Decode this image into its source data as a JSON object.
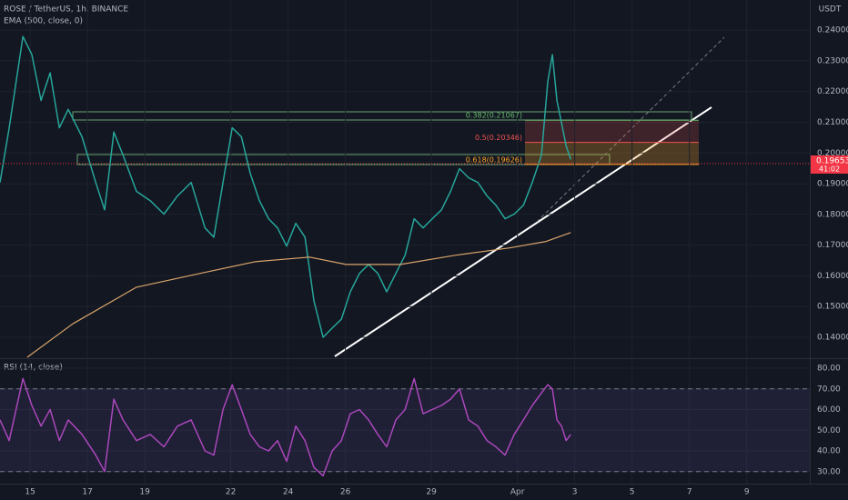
{
  "header": {
    "symbol": "ROSE / TetherUS, 1h, BINANCE",
    "indicator": "EMA (500, close, 0)",
    "currency": "USDT"
  },
  "chart_data": [
    {
      "type": "line",
      "x": [
        13.95,
        14.27,
        14.75,
        15.06,
        15.38,
        15.7,
        16.02,
        16.33,
        16.81,
        17.29,
        17.6,
        17.92,
        18.24,
        18.71,
        19.19,
        19.67,
        20.14,
        20.62,
        21.1,
        21.41,
        21.73,
        22.05,
        22.37,
        22.68,
        23.0,
        23.32,
        23.63,
        23.95,
        24.27,
        24.59,
        24.9,
        25.22,
        25.54,
        25.86,
        26.17,
        26.49,
        26.81,
        27.13,
        27.44,
        27.76,
        28.08,
        28.4,
        28.71,
        29.03,
        29.35,
        29.67,
        29.98,
        30.3,
        30.62,
        30.94,
        31.25,
        31.57,
        31.89,
        32.21,
        32.52,
        32.84,
        33.06,
        33.22,
        33.38,
        33.54,
        33.7,
        33.86
      ],
      "series": [
        {
          "color": "#26a69a",
          "values": [
            0.1904,
            0.2082,
            0.2379,
            0.232,
            0.2171,
            0.2261,
            0.2082,
            0.2142,
            0.2053,
            0.1904,
            0.1815,
            0.2068,
            0.1993,
            0.1875,
            0.1845,
            0.1801,
            0.186,
            0.1904,
            0.1756,
            0.1726,
            0.1904,
            0.2082,
            0.2053,
            0.1934,
            0.1845,
            0.1786,
            0.1756,
            0.1697,
            0.1771,
            0.1726,
            0.1519,
            0.14,
            0.143,
            0.1459,
            0.1548,
            0.1608,
            0.1637,
            0.1608,
            0.1548,
            0.1608,
            0.1667,
            0.1786,
            0.1756,
            0.1786,
            0.1815,
            0.1875,
            0.1949,
            0.1919,
            0.1904,
            0.186,
            0.183,
            0.1786,
            0.1801,
            0.183,
            0.1904,
            0.1993,
            0.2231,
            0.232,
            0.2171,
            0.2097,
            0.2023,
            0.1979
          ]
        },
        {
          "color": "#d8a46a",
          "x": [
            14.9,
            16.49,
            18.71,
            20.94,
            22.84,
            24.75,
            26.02,
            27.92,
            29.83,
            31.73,
            33.0,
            33.86
          ],
          "values": [
            0.1335,
            0.1444,
            0.1563,
            0.1608,
            0.1646,
            0.1661,
            0.1637,
            0.1637,
            0.1667,
            0.1691,
            0.1712,
            0.1741
          ]
        }
      ],
      "xlim": [
        13.95,
        42.2
      ],
      "ylim": [
        0.1332,
        0.2498
      ],
      "yticks": [
        {
          "value": 0.14,
          "label": "0.14000"
        },
        {
          "value": 0.15,
          "label": "0.15000"
        },
        {
          "value": 0.16,
          "label": "0.16000"
        },
        {
          "value": 0.17,
          "label": "0.17000"
        },
        {
          "value": 0.18,
          "label": "0.18000"
        },
        {
          "value": 0.19,
          "label": "0.19000"
        },
        {
          "value": 0.2,
          "label": "0.20000"
        },
        {
          "value": 0.21,
          "label": "0.21000"
        },
        {
          "value": 0.22,
          "label": "0.22000"
        },
        {
          "value": 0.23,
          "label": "0.23000"
        },
        {
          "value": 0.24,
          "label": "0.24000"
        }
      ],
      "fib": [
        {
          "value": 0.21067,
          "label": "0.382(0.21067)",
          "color": "#66bb6a"
        },
        {
          "value": 0.20346,
          "label": "0.5(0.20346)",
          "color": "#ef5350"
        },
        {
          "value": 0.19626,
          "label": "0.618(0.19626)",
          "color": "#ffa726"
        }
      ],
      "last_price": {
        "value": 0.19653,
        "label": "0.19653",
        "countdown": "41:02",
        "color": "#f23645"
      },
      "grid": true
    },
    {
      "type": "line",
      "title": "RSI (14, close)",
      "x": [
        13.95,
        14.27,
        14.75,
        15.06,
        15.38,
        15.7,
        16.02,
        16.33,
        16.81,
        17.29,
        17.6,
        17.92,
        18.24,
        18.71,
        19.19,
        19.67,
        20.14,
        20.62,
        21.1,
        21.41,
        21.73,
        22.05,
        22.37,
        22.68,
        23.0,
        23.32,
        23.63,
        23.95,
        24.27,
        24.59,
        24.9,
        25.22,
        25.54,
        25.86,
        26.17,
        26.49,
        26.81,
        27.13,
        27.44,
        27.76,
        28.08,
        28.4,
        28.71,
        29.03,
        29.35,
        29.67,
        29.98,
        30.3,
        30.62,
        30.94,
        31.25,
        31.57,
        31.89,
        32.21,
        32.52,
        32.84,
        33.06,
        33.22,
        33.38,
        33.54,
        33.7,
        33.86
      ],
      "series": [
        {
          "color": "#ab47bc",
          "values": [
            55,
            45,
            75,
            62,
            52,
            60,
            45,
            55,
            48,
            38,
            30,
            65,
            55,
            45,
            48,
            42,
            52,
            55,
            40,
            38,
            60,
            72,
            60,
            48,
            42,
            40,
            45,
            35,
            52,
            45,
            32,
            28,
            40,
            45,
            58,
            60,
            55,
            48,
            42,
            55,
            60,
            75,
            58,
            60,
            62,
            65,
            70,
            55,
            52,
            45,
            42,
            38,
            48,
            55,
            62,
            68,
            72,
            70,
            55,
            52,
            45,
            48
          ]
        }
      ],
      "levels": [
        30,
        70
      ],
      "xlim": [
        13.95,
        42.2
      ],
      "ylim": [
        24.2,
        84.4
      ],
      "yticks": [
        {
          "value": 30,
          "label": "30.00"
        },
        {
          "value": 40,
          "label": "40.00"
        },
        {
          "value": 50,
          "label": "50.00"
        },
        {
          "value": 60,
          "label": "60.00"
        },
        {
          "value": 70,
          "label": "70.00"
        },
        {
          "value": 80,
          "label": "80.00"
        }
      ],
      "xticks": [
        15,
        17,
        19,
        22,
        24,
        26,
        29,
        {
          "value": 32,
          "label": "Apr"
        },
        {
          "value": 34,
          "label": "3"
        },
        {
          "value": 36,
          "label": "5"
        },
        {
          "value": 38,
          "label": "7"
        },
        {
          "value": 40,
          "label": "9"
        }
      ],
      "grid": true
    }
  ]
}
